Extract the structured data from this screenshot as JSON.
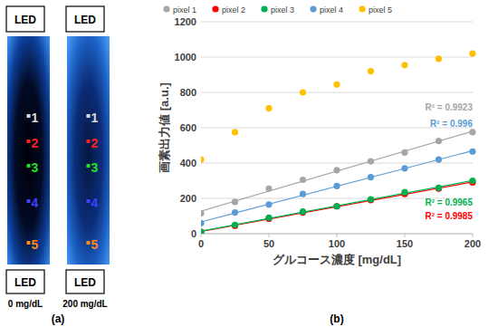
{
  "panel_a": {
    "label": "(a)",
    "led_label": "LED",
    "pixel_labels": [
      "1",
      "2",
      "3",
      "4",
      "5"
    ],
    "colors": [
      "#d9d9d9",
      "#ff2020",
      "#20e020",
      "#4040ff",
      "#ff8c1a"
    ],
    "images": [
      {
        "caption": "0 mg/dL"
      },
      {
        "caption": "200 mg/dL"
      }
    ]
  },
  "panel_b": {
    "label": "(b)"
  },
  "chart_data": {
    "type": "scatter",
    "x_label": "グルコース濃度 [mg/dL]",
    "y_label": "画素出力値 [a.u.]",
    "x": [
      0,
      25,
      50,
      75,
      100,
      125,
      150,
      175,
      200
    ],
    "series": [
      {
        "name": "pixel 1",
        "color": "#a6a6a6",
        "values": [
          115,
          180,
          255,
          305,
          360,
          410,
          460,
          525,
          575
        ],
        "annotation": "R² = 0.9923"
      },
      {
        "name": "pixel 2",
        "color": "#ff0000",
        "values": [
          10,
          45,
          85,
          120,
          155,
          190,
          225,
          255,
          290
        ],
        "annotation": "R² = 0.9985"
      },
      {
        "name": "pixel 3",
        "color": "#00b050",
        "values": [
          10,
          50,
          90,
          125,
          155,
          195,
          235,
          260,
          300
        ],
        "annotation": "R² = 0.9965"
      },
      {
        "name": "pixel 4",
        "color": "#5b9bd5",
        "values": [
          60,
          120,
          165,
          225,
          270,
          320,
          370,
          420,
          465
        ],
        "annotation": "R² = 0.996"
      },
      {
        "name": "pixel 5",
        "color": "#ffc000",
        "values": [
          420,
          575,
          710,
          800,
          845,
          920,
          955,
          990,
          1020
        ]
      }
    ],
    "xlim": [
      0,
      200
    ],
    "xticks": [
      0,
      50,
      100,
      150,
      200
    ],
    "ylim": [
      0,
      1200
    ],
    "yticks": [
      0,
      200,
      400,
      600,
      800,
      1000,
      1200
    ],
    "grid": true,
    "legend": "top",
    "marker": "circle"
  }
}
